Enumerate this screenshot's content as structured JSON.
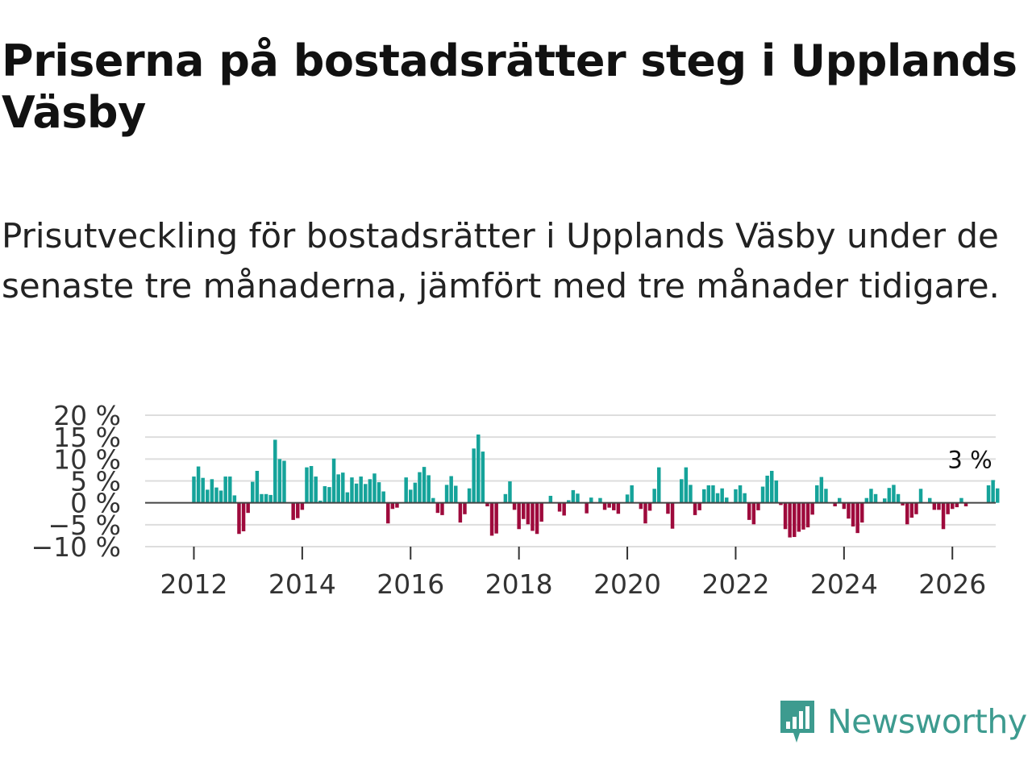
{
  "title": "Priserna på bostadsrätter steg i Upplands Väsby",
  "subtitle": "Prisutveckling för bostadsrätter i Upplands Väsby under de senaste tre månaderna, jämfört med tre månader tidigare.",
  "brand": {
    "name": "Newsworthy",
    "color": "#3d9b8f"
  },
  "colors": {
    "positive": "#15a39a",
    "negative": "#9e0a3c",
    "zero_line": "#444444",
    "grid": "#dddddd"
  },
  "chart_data": {
    "type": "bar",
    "x_start": 2012.0,
    "x_step": 0.0833333,
    "values": [
      6,
      8.3,
      5.7,
      3,
      5.4,
      3.5,
      2.8,
      6,
      6,
      1.7,
      -7.1,
      -6.5,
      -2.3,
      4.8,
      7.3,
      2,
      2,
      1.8,
      14.4,
      10,
      9.6,
      0,
      -3.9,
      -3.5,
      -1.6,
      8.1,
      8.4,
      6,
      0.5,
      3.8,
      3.6,
      10.1,
      6.5,
      6.9,
      2.4,
      5.8,
      4.4,
      6,
      4.3,
      5.4,
      6.7,
      4.7,
      2.6,
      -4.7,
      -1.4,
      -1.1,
      0,
      5.8,
      3,
      4.6,
      7,
      8.2,
      6.3,
      1.1,
      -2.3,
      -2.8,
      4.1,
      6.1,
      3.9,
      -4.5,
      -2.6,
      3.3,
      12.4,
      15.6,
      11.7,
      -0.8,
      -7.5,
      -7,
      0,
      2,
      4.9,
      -1.6,
      -6,
      -3.7,
      -4.9,
      -6.4,
      -7.1,
      -4.3,
      0,
      1.6,
      0,
      -2,
      -2.9,
      0.6,
      2.9,
      2.1,
      0,
      -2.4,
      1.2,
      0,
      1.1,
      -1.6,
      -1.1,
      -1.7,
      -2.5,
      0,
      1.9,
      4,
      0,
      -1.4,
      -4.7,
      -1.8,
      3.2,
      8.1,
      0,
      -2.5,
      -5.9,
      0,
      5.4,
      8.1,
      4.1,
      -2.8,
      -1.7,
      3.1,
      4,
      4,
      2.2,
      3.3,
      1.2,
      0,
      3.1,
      4,
      2.2,
      -3.9,
      -4.9,
      -1.7,
      3.7,
      6.2,
      7.3,
      5.1,
      -0.5,
      -6,
      -7.9,
      -7.8,
      -6.6,
      -6.1,
      -5.6,
      -2.7,
      4,
      5.9,
      3.2,
      0,
      -0.8,
      1.1,
      -1.4,
      -3.6,
      -5.4,
      -6.9,
      -4.5,
      1.1,
      3.2,
      2,
      0,
      1,
      3.4,
      4.1,
      2,
      -0.6,
      -4.9,
      -3.4,
      -2.6,
      3.2,
      0,
      1.1,
      -1.6,
      -1.6,
      -6,
      -2.6,
      -1.4,
      -1,
      1.1,
      -0.8,
      0,
      0,
      0,
      0,
      4,
      5.2,
      3.3
    ],
    "title": "Priserna på bostadsrätter steg i Upplands Väsby",
    "xlabel": "",
    "ylabel": "",
    "ylim": [
      -10,
      20
    ],
    "xlim": [
      2011.1,
      2026.8
    ],
    "y_ticks": [
      20,
      15,
      10,
      5,
      0,
      -5,
      -10
    ],
    "y_tick_labels": [
      "20 %",
      "15 %",
      "10 %",
      "5 %",
      "0 %",
      "−5 %",
      "−10 %"
    ],
    "x_ticks": [
      2012,
      2014,
      2016,
      2018,
      2020,
      2022,
      2024,
      2026
    ],
    "x_tick_labels": [
      "2012",
      "2014",
      "2016",
      "2018",
      "2020",
      "2022",
      "2024",
      "2026"
    ],
    "annotation": {
      "text": "3 %",
      "x": 2026.17,
      "y": 3.3
    },
    "grid": true,
    "legend": "none"
  }
}
